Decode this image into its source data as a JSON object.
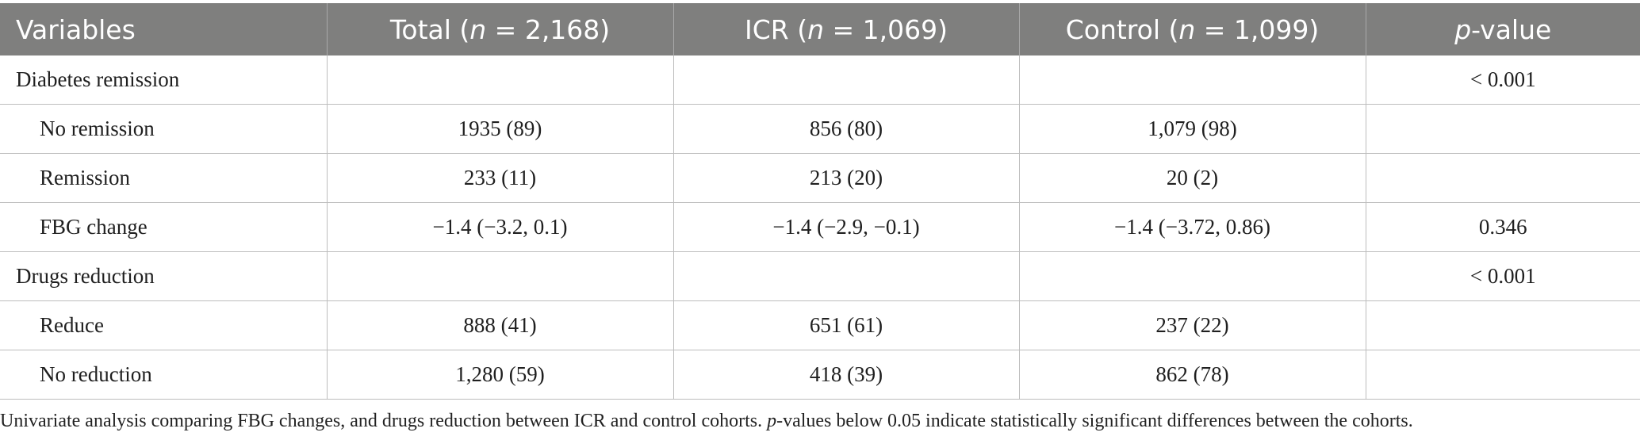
{
  "table": {
    "headers": {
      "variables": "Variables",
      "total_prefix": "Total (",
      "total_n": "n",
      "total_suffix": " = 2,168)",
      "icr_prefix": "ICR (",
      "icr_n": "n",
      "icr_suffix": " = 1,069)",
      "control_prefix": "Control (",
      "control_n": "n",
      "control_suffix": " = 1,099)",
      "p_italic": "p",
      "p_suffix": "-value"
    },
    "rows": [
      {
        "label": "Diabetes remission",
        "total": "",
        "icr": "",
        "control": "",
        "p": "< 0.001"
      },
      {
        "label": "No remission",
        "total": "1935 (89)",
        "icr": "856 (80)",
        "control": "1,079 (98)",
        "p": ""
      },
      {
        "label": "Remission",
        "total": "233 (11)",
        "icr": "213 (20)",
        "control": "20 (2)",
        "p": ""
      },
      {
        "label": "FBG change",
        "total": "−1.4 (−3.2, 0.1)",
        "icr": "−1.4 (−2.9, −0.1)",
        "control": "−1.4 (−3.72, 0.86)",
        "p": "0.346"
      },
      {
        "label": "Drugs reduction",
        "total": "",
        "icr": "",
        "control": "",
        "p": "< 0.001"
      },
      {
        "label": "Reduce",
        "total": "888 (41)",
        "icr": "651 (61)",
        "control": "237 (22)",
        "p": ""
      },
      {
        "label": "No reduction",
        "total": "1,280 (59)",
        "icr": "418 (39)",
        "control": "862 (78)",
        "p": ""
      }
    ]
  },
  "footnote": {
    "part1": "Univariate analysis comparing FBG changes, and drugs reduction between ICR and control cohorts. ",
    "italic": "p",
    "part2": "-values below 0.05 indicate statistically significant differences between the cohorts."
  }
}
